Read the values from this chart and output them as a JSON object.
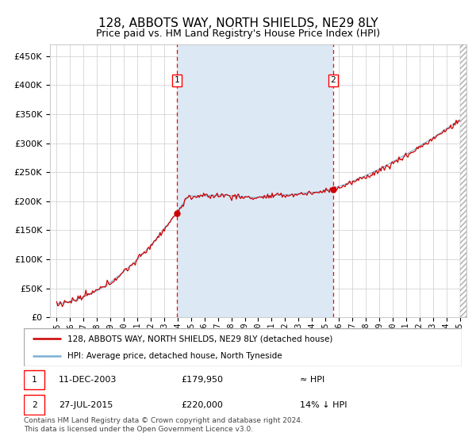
{
  "title": "128, ABBOTS WAY, NORTH SHIELDS, NE29 8LY",
  "subtitle": "Price paid vs. HM Land Registry's House Price Index (HPI)",
  "legend_line1": "128, ABBOTS WAY, NORTH SHIELDS, NE29 8LY (detached house)",
  "legend_line2": "HPI: Average price, detached house, North Tyneside",
  "note1_label": "1",
  "note1_date": "11-DEC-2003",
  "note1_price": "£179,950",
  "note1_hpi": "≈ HPI",
  "note2_label": "2",
  "note2_date": "27-JUL-2015",
  "note2_price": "£220,000",
  "note2_hpi": "14% ↓ HPI",
  "footer": "Contains HM Land Registry data © Crown copyright and database right 2024.\nThis data is licensed under the Open Government Licence v3.0.",
  "sale1_year": 2003.94,
  "sale1_price": 179950,
  "sale2_year": 2015.57,
  "sale2_price": 220000,
  "hpi_line_color": "#7BAFD4",
  "property_color": "#CC0000",
  "shade_color": "#DCE9F5",
  "ylim": [
    0,
    470000
  ],
  "xlim_start": 1994.5,
  "xlim_end": 2025.5,
  "hatch_start": 2025.0
}
